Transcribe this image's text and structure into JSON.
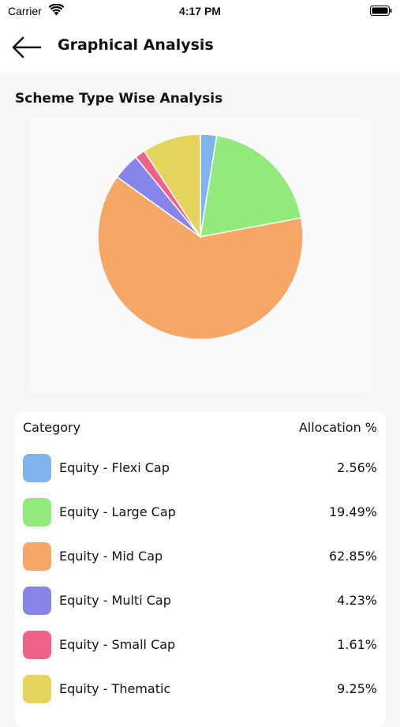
{
  "status_bar": {
    "carrier": "Carrier",
    "time": "4:17 PM"
  },
  "nav": {
    "title": "Graphical Analysis",
    "back_icon": "arrow-left-icon"
  },
  "section": {
    "title": "Scheme Type Wise Analysis"
  },
  "chart_data": {
    "type": "pie",
    "categories": [
      "Equity - Flexi Cap",
      "Equity - Large Cap",
      "Equity - Mid Cap",
      "Equity - Multi Cap",
      "Equity - Small Cap",
      "Equity - Thematic"
    ],
    "values": [
      2.56,
      19.49,
      62.85,
      4.23,
      1.61,
      9.25
    ],
    "colors": [
      "#7fb4ec",
      "#92ea7c",
      "#f6a765",
      "#8585ea",
      "#ef6187",
      "#e4d45b"
    ],
    "start_angle": "top",
    "direction": "clockwise"
  },
  "table": {
    "header_category": "Category",
    "header_allocation": "Allocation %",
    "rows": [
      {
        "label": "Equity - Flexi Cap",
        "value": "2.56%",
        "color": "#7fb4ec"
      },
      {
        "label": "Equity - Large Cap",
        "value": "19.49%",
        "color": "#92ea7c"
      },
      {
        "label": "Equity - Mid Cap",
        "value": "62.85%",
        "color": "#f6a765"
      },
      {
        "label": "Equity - Multi Cap",
        "value": "4.23%",
        "color": "#8585ea"
      },
      {
        "label": "Equity - Small Cap",
        "value": "1.61%",
        "color": "#ef6187"
      },
      {
        "label": "Equity - Thematic",
        "value": "9.25%",
        "color": "#e4d45b"
      }
    ]
  }
}
